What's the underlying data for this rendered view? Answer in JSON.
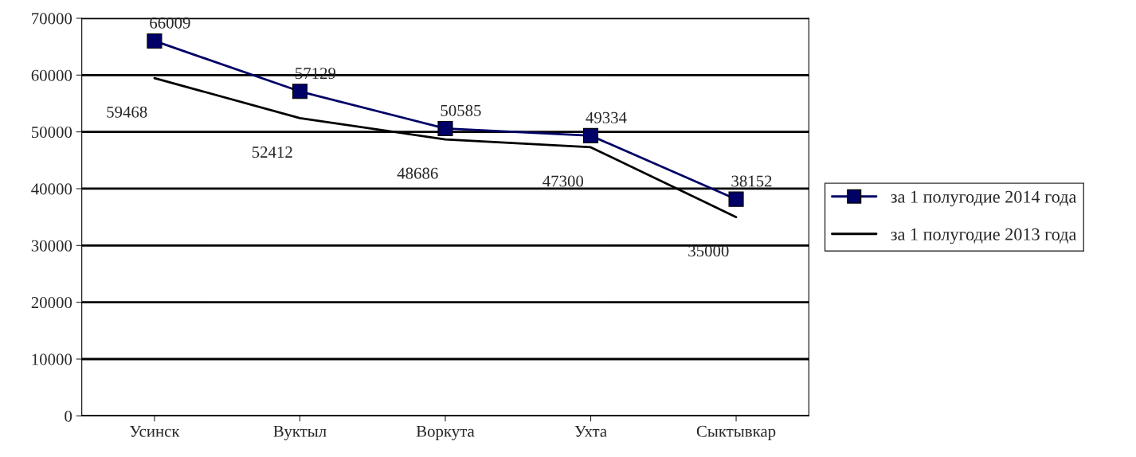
{
  "chart_data": {
    "type": "line",
    "categories": [
      "Усинск",
      "Вуктыл",
      "Воркута",
      "Ухта",
      "Сыктывкар"
    ],
    "series": [
      {
        "name": "за 1 полугодие 2014 года",
        "color": "#000066",
        "values": [
          66009,
          57129,
          50585,
          49334,
          38152
        ],
        "marker": "square"
      },
      {
        "name": "за 1 полугодие 2013 года",
        "color": "#000000",
        "values": [
          59468,
          52412,
          48686,
          47300,
          35000
        ],
        "marker": "none"
      }
    ],
    "ylim": [
      0,
      70000
    ],
    "yticks": [
      0,
      10000,
      20000,
      30000,
      40000,
      50000,
      60000,
      70000
    ],
    "grid": "y",
    "legend": "right",
    "data_labels": true,
    "line_style": "solid"
  }
}
